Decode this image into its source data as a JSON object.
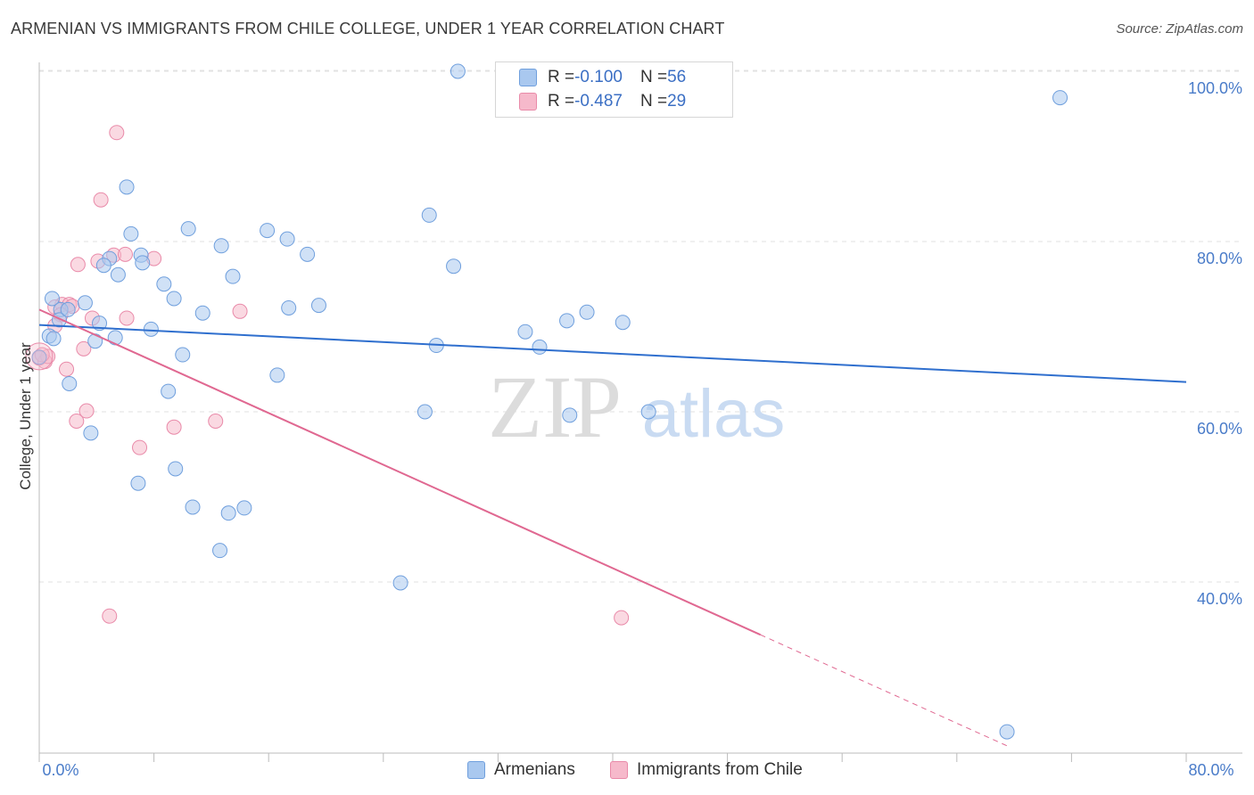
{
  "title": "ARMENIAN VS IMMIGRANTS FROM CHILE COLLEGE, UNDER 1 YEAR CORRELATION CHART",
  "source": "Source: ZipAtlas.com",
  "watermark": {
    "zip": "ZIP",
    "atlas": "atlas"
  },
  "legend": {
    "rows": [
      {
        "r_label": "R = ",
        "r_value": "-0.100",
        "n_label": "N = ",
        "n_value": "56"
      },
      {
        "r_label": "R = ",
        "r_value": "-0.487",
        "n_label": "N = ",
        "n_value": "29"
      }
    ]
  },
  "bottom_legend": [
    "Armenians",
    "Immigrants from Chile"
  ],
  "colors": {
    "armenians_fill": "#a9c8ef",
    "armenians_stroke": "#6f9fdd",
    "armenians_line": "#2f6fce",
    "chile_fill": "#f6b9cb",
    "chile_stroke": "#e98aa9",
    "chile_line": "#e06891",
    "grid": "#e2e2e2",
    "axis_text": "#4a7cc9"
  },
  "chart_data": {
    "type": "scatter",
    "title": "ARMENIAN VS IMMIGRANTS FROM CHILE COLLEGE, UNDER 1 YEAR CORRELATION CHART",
    "xlabel": "",
    "ylabel": "College, Under 1 year",
    "xlim": [
      0,
      80
    ],
    "ylim": [
      20,
      102
    ],
    "x_tick_labels": [
      "0.0%",
      "80.0%"
    ],
    "y_ticks": [
      40,
      60,
      80,
      100
    ],
    "y_tick_labels": [
      "40.0%",
      "60.0%",
      "80.0%",
      "100.0%"
    ],
    "grid": true,
    "series": [
      {
        "name": "Armenians",
        "R": -0.1,
        "N": 56,
        "trend": {
          "x": [
            0,
            80
          ],
          "y": [
            70.2,
            63.5
          ]
        },
        "points": [
          {
            "x": 29.2,
            "y": 100.0
          },
          {
            "x": 71.2,
            "y": 96.9
          },
          {
            "x": 6.1,
            "y": 86.4
          },
          {
            "x": 27.2,
            "y": 83.1
          },
          {
            "x": 10.4,
            "y": 81.5
          },
          {
            "x": 6.4,
            "y": 80.9
          },
          {
            "x": 15.9,
            "y": 81.3
          },
          {
            "x": 17.3,
            "y": 80.3
          },
          {
            "x": 12.7,
            "y": 79.5
          },
          {
            "x": 18.7,
            "y": 78.5
          },
          {
            "x": 7.1,
            "y": 78.4
          },
          {
            "x": 4.9,
            "y": 78.0
          },
          {
            "x": 4.5,
            "y": 77.2
          },
          {
            "x": 7.2,
            "y": 77.5
          },
          {
            "x": 28.9,
            "y": 77.1
          },
          {
            "x": 5.5,
            "y": 76.1
          },
          {
            "x": 13.5,
            "y": 75.9
          },
          {
            "x": 8.7,
            "y": 75.0
          },
          {
            "x": 0.9,
            "y": 73.3
          },
          {
            "x": 9.4,
            "y": 73.3
          },
          {
            "x": 3.2,
            "y": 72.8
          },
          {
            "x": 1.5,
            "y": 72.0
          },
          {
            "x": 17.4,
            "y": 72.2
          },
          {
            "x": 19.5,
            "y": 72.5
          },
          {
            "x": 11.4,
            "y": 71.6
          },
          {
            "x": 38.2,
            "y": 71.7
          },
          {
            "x": 1.4,
            "y": 70.8
          },
          {
            "x": 36.8,
            "y": 70.7
          },
          {
            "x": 40.7,
            "y": 70.5
          },
          {
            "x": 4.2,
            "y": 70.4
          },
          {
            "x": 7.8,
            "y": 69.7
          },
          {
            "x": 33.9,
            "y": 69.4
          },
          {
            "x": 0.7,
            "y": 68.9
          },
          {
            "x": 1.0,
            "y": 68.6
          },
          {
            "x": 5.3,
            "y": 68.7
          },
          {
            "x": 3.9,
            "y": 68.3
          },
          {
            "x": 27.7,
            "y": 67.8
          },
          {
            "x": 34.9,
            "y": 67.6
          },
          {
            "x": 10.0,
            "y": 66.7
          },
          {
            "x": 0.0,
            "y": 66.4
          },
          {
            "x": 16.6,
            "y": 64.3
          },
          {
            "x": 2.1,
            "y": 63.3
          },
          {
            "x": 9.0,
            "y": 62.4
          },
          {
            "x": 26.9,
            "y": 60.0
          },
          {
            "x": 42.5,
            "y": 60.0
          },
          {
            "x": 37.0,
            "y": 59.6
          },
          {
            "x": 3.6,
            "y": 57.5
          },
          {
            "x": 9.5,
            "y": 53.3
          },
          {
            "x": 6.9,
            "y": 51.6
          },
          {
            "x": 10.7,
            "y": 48.8
          },
          {
            "x": 14.3,
            "y": 48.7
          },
          {
            "x": 13.2,
            "y": 48.1
          },
          {
            "x": 12.6,
            "y": 43.7
          },
          {
            "x": 25.2,
            "y": 39.9
          },
          {
            "x": 67.5,
            "y": 22.4
          },
          {
            "x": 2.0,
            "y": 72.0
          }
        ]
      },
      {
        "name": "Immigrants from Chile",
        "R": -0.487,
        "N": 29,
        "trend": {
          "x": [
            0,
            50.3
          ],
          "y": [
            72.0,
            33.8
          ]
        },
        "trend_dashed": {
          "x": [
            50.3,
            67.7
          ],
          "y": [
            33.8,
            20.6
          ]
        },
        "points": [
          {
            "x": 5.4,
            "y": 92.8
          },
          {
            "x": 4.3,
            "y": 84.9
          },
          {
            "x": 5.2,
            "y": 78.4
          },
          {
            "x": 8.0,
            "y": 78.0
          },
          {
            "x": 6.0,
            "y": 78.5
          },
          {
            "x": 4.1,
            "y": 77.7
          },
          {
            "x": 2.7,
            "y": 77.3
          },
          {
            "x": 1.6,
            "y": 72.6
          },
          {
            "x": 2.1,
            "y": 72.6
          },
          {
            "x": 1.1,
            "y": 72.3
          },
          {
            "x": 14.0,
            "y": 71.8
          },
          {
            "x": 1.5,
            "y": 71.4
          },
          {
            "x": 3.7,
            "y": 71.0
          },
          {
            "x": 6.1,
            "y": 71.0
          },
          {
            "x": 1.1,
            "y": 70.1
          },
          {
            "x": 3.1,
            "y": 67.4
          },
          {
            "x": 0.0,
            "y": 66.3
          },
          {
            "x": 0.4,
            "y": 65.9
          },
          {
            "x": 1.9,
            "y": 65.0
          },
          {
            "x": 3.3,
            "y": 60.1
          },
          {
            "x": 2.6,
            "y": 58.9
          },
          {
            "x": 12.3,
            "y": 58.9
          },
          {
            "x": 9.4,
            "y": 58.2
          },
          {
            "x": 7.0,
            "y": 55.8
          },
          {
            "x": 4.9,
            "y": 36.0
          },
          {
            "x": 40.6,
            "y": 35.8
          },
          {
            "x": 0.6,
            "y": 66.5
          },
          {
            "x": 0.2,
            "y": 66.7
          },
          {
            "x": 2.3,
            "y": 72.4
          }
        ]
      }
    ]
  }
}
